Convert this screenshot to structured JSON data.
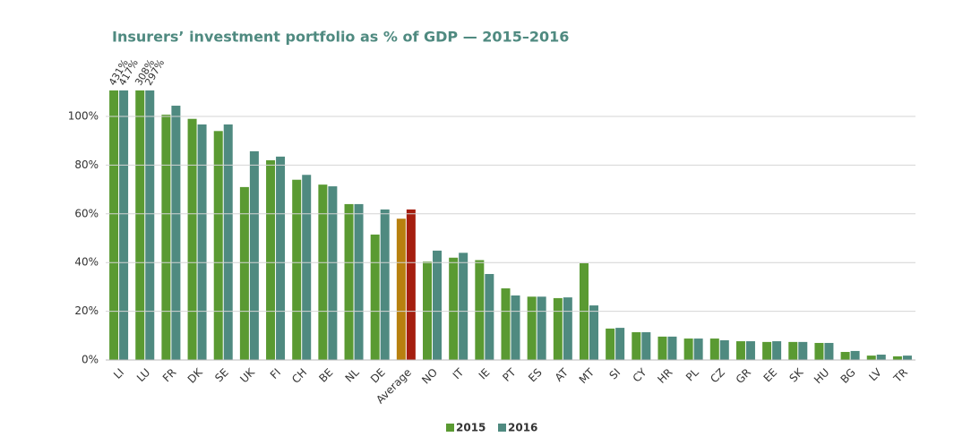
{
  "chart_data": {
    "type": "bar",
    "title": "Insurers’ investment portfolio as % of GDP — 2015–2016",
    "categories": [
      "LI",
      "LU",
      "FR",
      "DK",
      "SE",
      "UK",
      "FI",
      "CH",
      "BE",
      "NL",
      "DE",
      "Average",
      "NO",
      "IT",
      "IE",
      "PT",
      "ES",
      "AT",
      "MT",
      "SI",
      "CY",
      "HR",
      "PL",
      "CZ",
      "GR",
      "EE",
      "SK",
      "HU",
      "BG",
      "LV",
      "TR"
    ],
    "series": [
      {
        "name": "2015",
        "color": "#5a9a32",
        "highlight_colors": {
          "Average": "#b8800f"
        },
        "values": [
          431,
          308,
          100.7,
          99,
          94,
          71,
          82,
          74,
          72,
          64,
          51.5,
          58,
          40.4,
          42,
          41,
          29.4,
          26,
          25.4,
          39.7,
          12.9,
          11.4,
          9.6,
          8.8,
          8.8,
          7.7,
          7.4,
          7.4,
          7,
          3.3,
          1.8,
          1.5
        ],
        "value_labels": [
          "431%",
          "308%",
          null,
          null,
          null,
          null,
          null,
          null,
          null,
          null,
          null,
          null,
          null,
          null,
          null,
          null,
          null,
          null,
          null,
          null,
          null,
          null,
          null,
          null,
          null,
          null,
          null,
          null,
          null,
          null,
          null
        ]
      },
      {
        "name": "2016",
        "color": "#4f8a80",
        "highlight_colors": {
          "Average": "#a51e0f"
        },
        "values": [
          417,
          297,
          104.4,
          96.7,
          96.7,
          85.7,
          83.5,
          76,
          71.3,
          64,
          61.8,
          61.8,
          44.9,
          44,
          35.3,
          26.5,
          26,
          25.7,
          22.4,
          13.2,
          11.4,
          9.6,
          8.8,
          8.1,
          7.7,
          7.7,
          7.4,
          7,
          3.7,
          2.2,
          1.8
        ],
        "value_labels": [
          "417%",
          "297%",
          null,
          null,
          null,
          null,
          null,
          null,
          null,
          null,
          null,
          null,
          null,
          null,
          null,
          null,
          null,
          null,
          null,
          null,
          null,
          null,
          null,
          null,
          null,
          null,
          null,
          null,
          null,
          null,
          null
        ]
      }
    ],
    "ylim": [
      0,
      110
    ],
    "yticks": [
      {
        "value": 0,
        "label": "0%"
      },
      {
        "value": 20,
        "label": "20%"
      },
      {
        "value": 40,
        "label": "40%"
      },
      {
        "value": 60,
        "label": "60%"
      },
      {
        "value": 80,
        "label": "80%"
      },
      {
        "value": 100,
        "label": "100%"
      }
    ],
    "grid": true,
    "legend": "bottom"
  }
}
